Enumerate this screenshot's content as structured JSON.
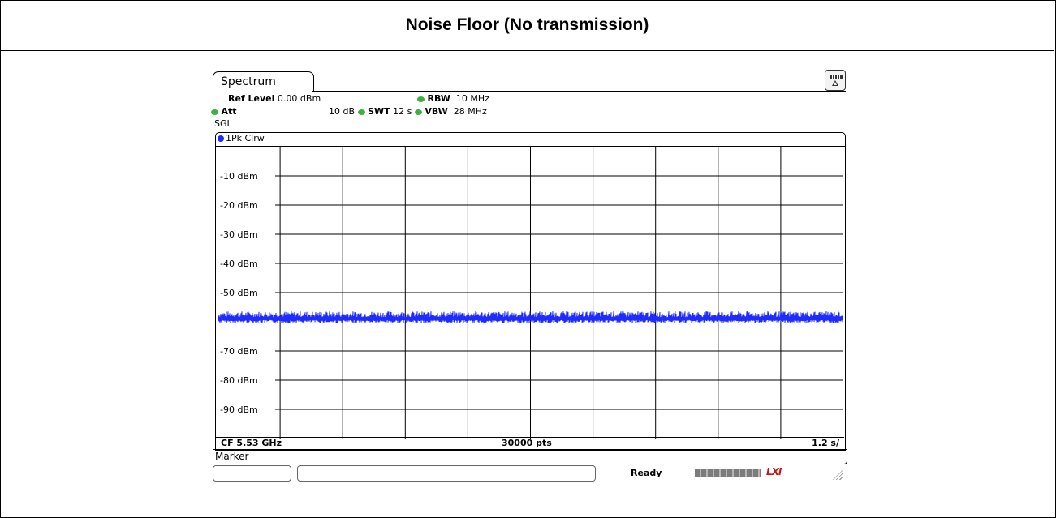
{
  "title": "Noise Floor (No transmission)",
  "screen": {
    "tab": "Spectrum",
    "ref_level_label": "Ref Level",
    "ref_level_value": "0.00 dBm",
    "att_label": "Att",
    "att_value": "10 dB",
    "swt_label": "SWT",
    "swt_value": "12 s",
    "rbw_label": "RBW",
    "rbw_value": "10 MHz",
    "vbw_label": "VBW",
    "vbw_value": "28 MHz",
    "mode": "SGL",
    "trace_label": "1Pk Clrw",
    "footer_left": "CF 5.53 GHz",
    "footer_center": "30000 pts",
    "footer_right": "1.2 s/",
    "marker": "Marker",
    "status": "Ready",
    "status_badge": "LXI",
    "colors": {
      "trace": "#1f2cff",
      "led": "#3cb043"
    }
  },
  "chart_data": {
    "type": "line",
    "xlabel": "",
    "ylabel": "",
    "ylim": [
      -100,
      0
    ],
    "x_divisions": 10,
    "y_ticks": [
      "-10 dBm",
      "-20 dBm",
      "-30 dBm",
      "-40 dBm",
      "-50 dBm",
      "-60 dBm",
      "-70 dBm",
      "-80 dBm",
      "-90 dBm"
    ],
    "series": [
      {
        "level_dbm": -59,
        "noise_pp_db": 2,
        "points": 30000
      }
    ],
    "grid": true
  }
}
